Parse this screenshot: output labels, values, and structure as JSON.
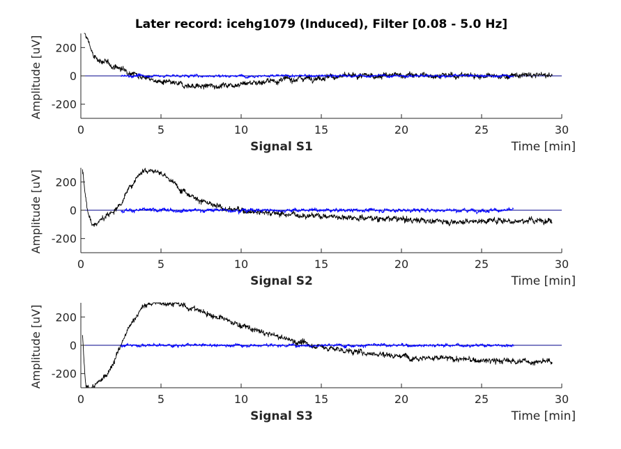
{
  "title": "Later record: icehg1079 (Induced), Filter [0.08 - 5.0 Hz]",
  "colors": {
    "signal_trace": "#000000",
    "overlay_trace": "#0000ff",
    "zero_line": "#00008b",
    "axis": "#262626"
  },
  "chart_data": [
    {
      "type": "line",
      "xlabel": "Signal S1",
      "xunit_label": "Time [min]",
      "ylabel": "Amplitude [uV]",
      "xlim": [
        0,
        30
      ],
      "ylim": [
        -300,
        300
      ],
      "xticks": [
        "0",
        "5",
        "10",
        "15",
        "20",
        "25",
        "30"
      ],
      "yticks": [
        "-200",
        "0",
        "200"
      ],
      "grid": false,
      "zero_line": true,
      "series": [
        {
          "color": "#000000",
          "x": [
            0.2,
            0.5,
            0.8,
            1.2,
            1.6,
            2.0,
            2.5,
            3.0,
            3.5,
            4.0,
            4.5,
            5.0,
            6.0,
            7.0,
            7.5,
            8.0,
            9.0,
            10.0,
            11.0,
            12.0,
            13.0,
            14.0,
            15.0,
            16.0,
            17.0,
            18.0,
            19.0,
            20.0,
            21.0,
            22.0,
            23.0,
            24.0,
            25.0,
            26.0,
            27.0,
            28.0,
            29.0,
            29.4
          ],
          "y": [
            300,
            240,
            130,
            110,
            90,
            70,
            50,
            30,
            10,
            -10,
            -30,
            -45,
            -60,
            -70,
            -75,
            -72,
            -65,
            -55,
            -45,
            -35,
            -25,
            -15,
            -10,
            -5,
            -3,
            0,
            3,
            5,
            5,
            3,
            0,
            5,
            0,
            -5,
            0,
            5,
            5,
            0
          ],
          "noise": 14
        },
        {
          "color": "#0000ff",
          "x": [
            2.5,
            27.0
          ],
          "y": [
            0,
            0
          ],
          "noise": 7
        }
      ]
    },
    {
      "type": "line",
      "xlabel": "Signal S2",
      "xunit_label": "Time [min]",
      "ylabel": "Amplitude [uV]",
      "xlim": [
        0,
        30
      ],
      "ylim": [
        -300,
        300
      ],
      "xticks": [
        "0",
        "5",
        "10",
        "15",
        "20",
        "25",
        "30"
      ],
      "yticks": [
        "-200",
        "0",
        "200"
      ],
      "grid": false,
      "zero_line": true,
      "series": [
        {
          "color": "#000000",
          "x": [
            0.1,
            0.2,
            0.4,
            0.7,
            1.0,
            1.5,
            2.0,
            2.5,
            3.0,
            3.5,
            4.0,
            4.5,
            5.0,
            5.5,
            6.0,
            7.0,
            8.0,
            9.0,
            10.0,
            11.0,
            12.0,
            13.0,
            14.0,
            15.0,
            16.0,
            17.0,
            18.0,
            19.0,
            20.0,
            21.0,
            22.0,
            23.0,
            24.0,
            25.0,
            26.0,
            27.0,
            28.0,
            29.0,
            29.4
          ],
          "y": [
            300,
            200,
            0,
            -100,
            -90,
            -50,
            -10,
            50,
            150,
            240,
            290,
            285,
            260,
            220,
            170,
            100,
            40,
            10,
            0,
            -10,
            -20,
            -30,
            -35,
            -40,
            -45,
            -50,
            -55,
            -60,
            -65,
            -70,
            -75,
            -80,
            -80,
            -75,
            -70,
            -75,
            -75,
            -70,
            -75
          ],
          "noise": 14
        },
        {
          "color": "#0000ff",
          "x": [
            2.5,
            27.0
          ],
          "y": [
            0,
            0
          ],
          "noise": 9
        }
      ]
    },
    {
      "type": "line",
      "xlabel": "Signal S3",
      "xunit_label": "Time [min]",
      "ylabel": "Amplitude [uV]",
      "xlim": [
        0,
        30
      ],
      "ylim": [
        -300,
        300
      ],
      "xticks": [
        "0",
        "5",
        "10",
        "15",
        "20",
        "25",
        "30"
      ],
      "yticks": [
        "-200",
        "0",
        "200"
      ],
      "grid": false,
      "zero_line": true,
      "series": [
        {
          "color": "#000000",
          "x": [
            0.1,
            0.3,
            0.7,
            1.0,
            1.5,
            2.0,
            2.5,
            3.0,
            3.5,
            4.0,
            4.5,
            5.0,
            5.5,
            6.0,
            7.0,
            8.0,
            9.0,
            10.0,
            11.0,
            12.0,
            13.0,
            14.0,
            15.0,
            16.0,
            17.0,
            18.0,
            19.0,
            20.0,
            21.0,
            22.0,
            23.0,
            24.0,
            25.0,
            26.0,
            27.0,
            28.0,
            29.0,
            29.4
          ],
          "y": [
            80,
            -300,
            -300,
            -280,
            -220,
            -130,
            0,
            120,
            220,
            280,
            300,
            300,
            300,
            290,
            260,
            220,
            180,
            140,
            100,
            70,
            40,
            10,
            -10,
            -30,
            -45,
            -55,
            -65,
            -75,
            -85,
            -90,
            -95,
            -100,
            -110,
            -110,
            -110,
            -115,
            -120,
            -110
          ],
          "noise": 14
        },
        {
          "color": "#0000ff",
          "x": [
            2.5,
            27.0
          ],
          "y": [
            0,
            0
          ],
          "noise": 8
        }
      ]
    }
  ]
}
